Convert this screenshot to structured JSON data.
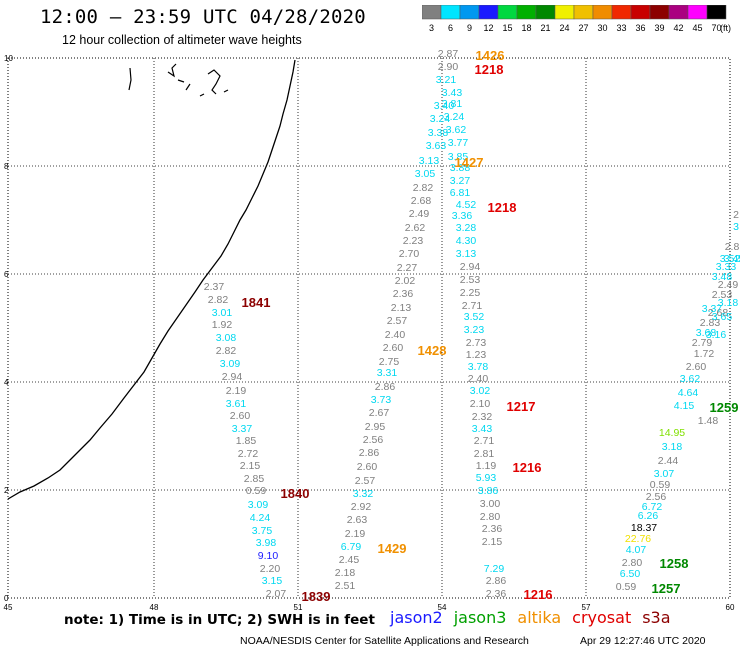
{
  "header": {
    "title": "12:00 – 23:59 UTC 04/28/2020",
    "subtitle": "12 hour collection of altimeter wave heights"
  },
  "legend": {
    "unit": "(ft)",
    "bins": [
      {
        "label": "3",
        "color": "#808080"
      },
      {
        "label": "6",
        "color": "#00e5ff"
      },
      {
        "label": "9",
        "color": "#0098f0"
      },
      {
        "label": "12",
        "color": "#1a1aff"
      },
      {
        "label": "15",
        "color": "#00d840"
      },
      {
        "label": "18",
        "color": "#00b000"
      },
      {
        "label": "21",
        "color": "#008800"
      },
      {
        "label": "24",
        "color": "#f0f000"
      },
      {
        "label": "27",
        "color": "#f0c000"
      },
      {
        "label": "30",
        "color": "#f08c00"
      },
      {
        "label": "33",
        "color": "#f02800"
      },
      {
        "label": "36",
        "color": "#c80000"
      },
      {
        "label": "39",
        "color": "#8c0000"
      },
      {
        "label": "42",
        "color": "#aa0080"
      },
      {
        "label": "45",
        "color": "#ff00ff"
      },
      {
        "label": "70",
        "color": "#000000"
      }
    ]
  },
  "map": {
    "x_ticks": [
      "45",
      "48",
      "51",
      "54",
      "57",
      "60"
    ],
    "y_ticks": [
      "0",
      "2",
      "4",
      "6",
      "8",
      "10"
    ],
    "colors": {
      "gray": "#808080",
      "cyan": "#00d8f0",
      "blue": "#1a1aff",
      "green_lt": "#80e000",
      "green": "#008800",
      "yellow": "#f0e000",
      "orange": "#f09000",
      "red": "#e00000",
      "darkred": "#8c0000",
      "black": "#000000"
    },
    "wave_values": [
      {
        "v": "2.37",
        "c": "gray"
      },
      {
        "v": "2.82",
        "c": "gray"
      },
      {
        "v": "3.01",
        "c": "cyan"
      },
      {
        "v": "1.92",
        "c": "gray"
      },
      {
        "v": "3.08",
        "c": "cyan"
      },
      {
        "v": "2.82",
        "c": "gray"
      },
      {
        "v": "3.09",
        "c": "cyan"
      },
      {
        "v": "2.94",
        "c": "gray"
      },
      {
        "v": "2.19",
        "c": "gray"
      },
      {
        "v": "3.61",
        "c": "cyan"
      },
      {
        "v": "2.60",
        "c": "gray"
      },
      {
        "v": "3.37",
        "c": "cyan"
      },
      {
        "v": "1.85",
        "c": "gray"
      },
      {
        "v": "2.72",
        "c": "gray"
      },
      {
        "v": "2.15",
        "c": "gray"
      },
      {
        "v": "2.85",
        "c": "gray"
      },
      {
        "v": "0.59",
        "c": "gray"
      },
      {
        "v": "3.09",
        "c": "cyan"
      },
      {
        "v": "4.24",
        "c": "cyan"
      },
      {
        "v": "3.75",
        "c": "cyan"
      },
      {
        "v": "3.98",
        "c": "cyan"
      },
      {
        "v": "9.10",
        "c": "blue"
      },
      {
        "v": "2.20",
        "c": "gray"
      },
      {
        "v": "3.15",
        "c": "cyan"
      },
      {
        "v": "2.07",
        "c": "gray"
      },
      {
        "v": "2.02",
        "c": "gray"
      },
      {
        "v": "2.36",
        "c": "gray"
      },
      {
        "v": "2.13",
        "c": "gray"
      },
      {
        "v": "2.57",
        "c": "gray"
      },
      {
        "v": "2.40",
        "c": "gray"
      },
      {
        "v": "2.60",
        "c": "gray"
      },
      {
        "v": "2.75",
        "c": "gray"
      },
      {
        "v": "3.31",
        "c": "cyan"
      },
      {
        "v": "2.86",
        "c": "gray"
      },
      {
        "v": "3.73",
        "c": "cyan"
      },
      {
        "v": "2.67",
        "c": "gray"
      },
      {
        "v": "2.95",
        "c": "gray"
      },
      {
        "v": "2.56",
        "c": "gray"
      },
      {
        "v": "2.86",
        "c": "gray"
      },
      {
        "v": "2.60",
        "c": "gray"
      },
      {
        "v": "2.57",
        "c": "gray"
      },
      {
        "v": "3.32",
        "c": "cyan"
      },
      {
        "v": "2.92",
        "c": "gray"
      },
      {
        "v": "2.63",
        "c": "gray"
      },
      {
        "v": "2.19",
        "c": "gray"
      },
      {
        "v": "6.79",
        "c": "cyan"
      },
      {
        "v": "2.45",
        "c": "gray"
      },
      {
        "v": "2.18",
        "c": "gray"
      },
      {
        "v": "2.51",
        "c": "gray"
      },
      {
        "v": "3.05",
        "c": "cyan"
      },
      {
        "v": "2.82",
        "c": "gray"
      },
      {
        "v": "2.68",
        "c": "gray"
      },
      {
        "v": "2.49",
        "c": "gray"
      },
      {
        "v": "2.62",
        "c": "gray"
      },
      {
        "v": "2.23",
        "c": "gray"
      },
      {
        "v": "2.70",
        "c": "gray"
      },
      {
        "v": "2.27",
        "c": "gray"
      },
      {
        "v": "2.87",
        "c": "gray"
      },
      {
        "v": "2.90",
        "c": "gray"
      },
      {
        "v": "3.21",
        "c": "cyan"
      },
      {
        "v": "3.43",
        "c": "cyan"
      },
      {
        "v": "3.40",
        "c": "cyan"
      },
      {
        "v": "3.81",
        "c": "cyan"
      },
      {
        "v": "3.24",
        "c": "cyan"
      },
      {
        "v": "3.24",
        "c": "cyan"
      },
      {
        "v": "3.62",
        "c": "cyan"
      },
      {
        "v": "3.38",
        "c": "cyan"
      },
      {
        "v": "3.77",
        "c": "cyan"
      },
      {
        "v": "3.63",
        "c": "cyan"
      },
      {
        "v": "3.85",
        "c": "cyan"
      },
      {
        "v": "3.13",
        "c": "cyan"
      },
      {
        "v": "3.88",
        "c": "cyan"
      },
      {
        "v": "3.27",
        "c": "cyan"
      },
      {
        "v": "6.81",
        "c": "cyan"
      },
      {
        "v": "4.52",
        "c": "cyan"
      },
      {
        "v": "3.36",
        "c": "cyan"
      },
      {
        "v": "3.28",
        "c": "cyan"
      },
      {
        "v": "4.30",
        "c": "cyan"
      },
      {
        "v": "3.13",
        "c": "cyan"
      },
      {
        "v": "2.94",
        "c": "gray"
      },
      {
        "v": "2.53",
        "c": "gray"
      },
      {
        "v": "2.25",
        "c": "gray"
      },
      {
        "v": "2.71",
        "c": "gray"
      },
      {
        "v": "3.52",
        "c": "cyan"
      },
      {
        "v": "3.23",
        "c": "cyan"
      },
      {
        "v": "2.73",
        "c": "gray"
      },
      {
        "v": "1.23",
        "c": "gray"
      },
      {
        "v": "3.78",
        "c": "cyan"
      },
      {
        "v": "2.40",
        "c": "gray"
      },
      {
        "v": "3.02",
        "c": "cyan"
      },
      {
        "v": "2.10",
        "c": "gray"
      },
      {
        "v": "2.32",
        "c": "gray"
      },
      {
        "v": "3.43",
        "c": "cyan"
      },
      {
        "v": "2.71",
        "c": "gray"
      },
      {
        "v": "2.81",
        "c": "gray"
      },
      {
        "v": "1.19",
        "c": "gray"
      },
      {
        "v": "5.93",
        "c": "cyan"
      },
      {
        "v": "3.86",
        "c": "cyan"
      },
      {
        "v": "3.00",
        "c": "gray"
      },
      {
        "v": "2.80",
        "c": "gray"
      },
      {
        "v": "2.36",
        "c": "gray"
      },
      {
        "v": "2.15",
        "c": "gray"
      },
      {
        "v": "7.29",
        "c": "cyan"
      },
      {
        "v": "2.86",
        "c": "gray"
      },
      {
        "v": "2.36",
        "c": "gray"
      },
      {
        "v": "2.60",
        "c": "gray"
      },
      {
        "v": "3.62",
        "c": "cyan"
      },
      {
        "v": "4.64",
        "c": "cyan"
      },
      {
        "v": "4.15",
        "c": "cyan"
      },
      {
        "v": "1.48",
        "c": "gray"
      },
      {
        "v": "14.95",
        "c": "green_lt"
      },
      {
        "v": "3.18",
        "c": "cyan"
      },
      {
        "v": "2.44",
        "c": "gray"
      },
      {
        "v": "3.07",
        "c": "cyan"
      },
      {
        "v": "0.59",
        "c": "gray"
      },
      {
        "v": "2.56",
        "c": "gray"
      },
      {
        "v": "6.72",
        "c": "cyan"
      },
      {
        "v": "6.26",
        "c": "cyan"
      },
      {
        "v": "18.37",
        "c": "black"
      },
      {
        "v": "22.76",
        "c": "yellow"
      },
      {
        "v": "4.07",
        "c": "cyan"
      },
      {
        "v": "2.80",
        "c": "gray"
      },
      {
        "v": "6.50",
        "c": "cyan"
      },
      {
        "v": "0.59",
        "c": "gray"
      },
      {
        "v": "2.79",
        "c": "gray"
      },
      {
        "v": "1.72",
        "c": "gray"
      },
      {
        "v": "2.83",
        "c": "gray"
      },
      {
        "v": "2.68",
        "c": "gray"
      },
      {
        "v": "2.53",
        "c": "gray"
      },
      {
        "v": "2.49",
        "c": "gray"
      },
      {
        "v": "2.8",
        "c": "gray"
      },
      {
        "v": "2",
        "c": "gray"
      },
      {
        "v": "3",
        "c": "cyan"
      },
      {
        "v": "3.16",
        "c": "cyan"
      },
      {
        "v": "3.37",
        "c": "cyan"
      },
      {
        "v": "3.48",
        "c": "cyan"
      },
      {
        "v": "3.33",
        "c": "cyan"
      },
      {
        "v": "3.52",
        "c": "cyan"
      },
      {
        "v": "3.68",
        "c": "cyan"
      },
      {
        "v": "3.65",
        "c": "cyan"
      },
      {
        "v": "3.18",
        "c": "cyan"
      },
      {
        "v": "3.45",
        "c": "cyan"
      }
    ],
    "time_labels": [
      {
        "v": "1841",
        "c": "darkred"
      },
      {
        "v": "1840",
        "c": "darkred"
      },
      {
        "v": "1839",
        "c": "darkred"
      },
      {
        "v": "1428",
        "c": "orange"
      },
      {
        "v": "1429",
        "c": "orange"
      },
      {
        "v": "1426",
        "c": "orange"
      },
      {
        "v": "1218",
        "c": "red"
      },
      {
        "v": "1427",
        "c": "orange"
      },
      {
        "v": "1218",
        "c": "red"
      },
      {
        "v": "1217",
        "c": "red"
      },
      {
        "v": "1216",
        "c": "red"
      },
      {
        "v": "1216",
        "c": "red"
      },
      {
        "v": "1259",
        "c": "green"
      },
      {
        "v": "1258",
        "c": "green"
      },
      {
        "v": "1257",
        "c": "green"
      }
    ]
  },
  "footer": {
    "note": "note: 1) Time is in UTC; 2) SWH is in feet",
    "satellites": [
      {
        "name": "jason2",
        "color": "#1a1aff"
      },
      {
        "name": "jason3",
        "color": "#00a000"
      },
      {
        "name": "altika",
        "color": "#f09000"
      },
      {
        "name": "cryosat",
        "color": "#e00000"
      },
      {
        "name": "s3a",
        "color": "#8c0000"
      }
    ],
    "credit": "NOAA/NESDIS Center for Satellite Applications and Research",
    "generated": "Apr 29 12:27:46 UTC 2020"
  }
}
